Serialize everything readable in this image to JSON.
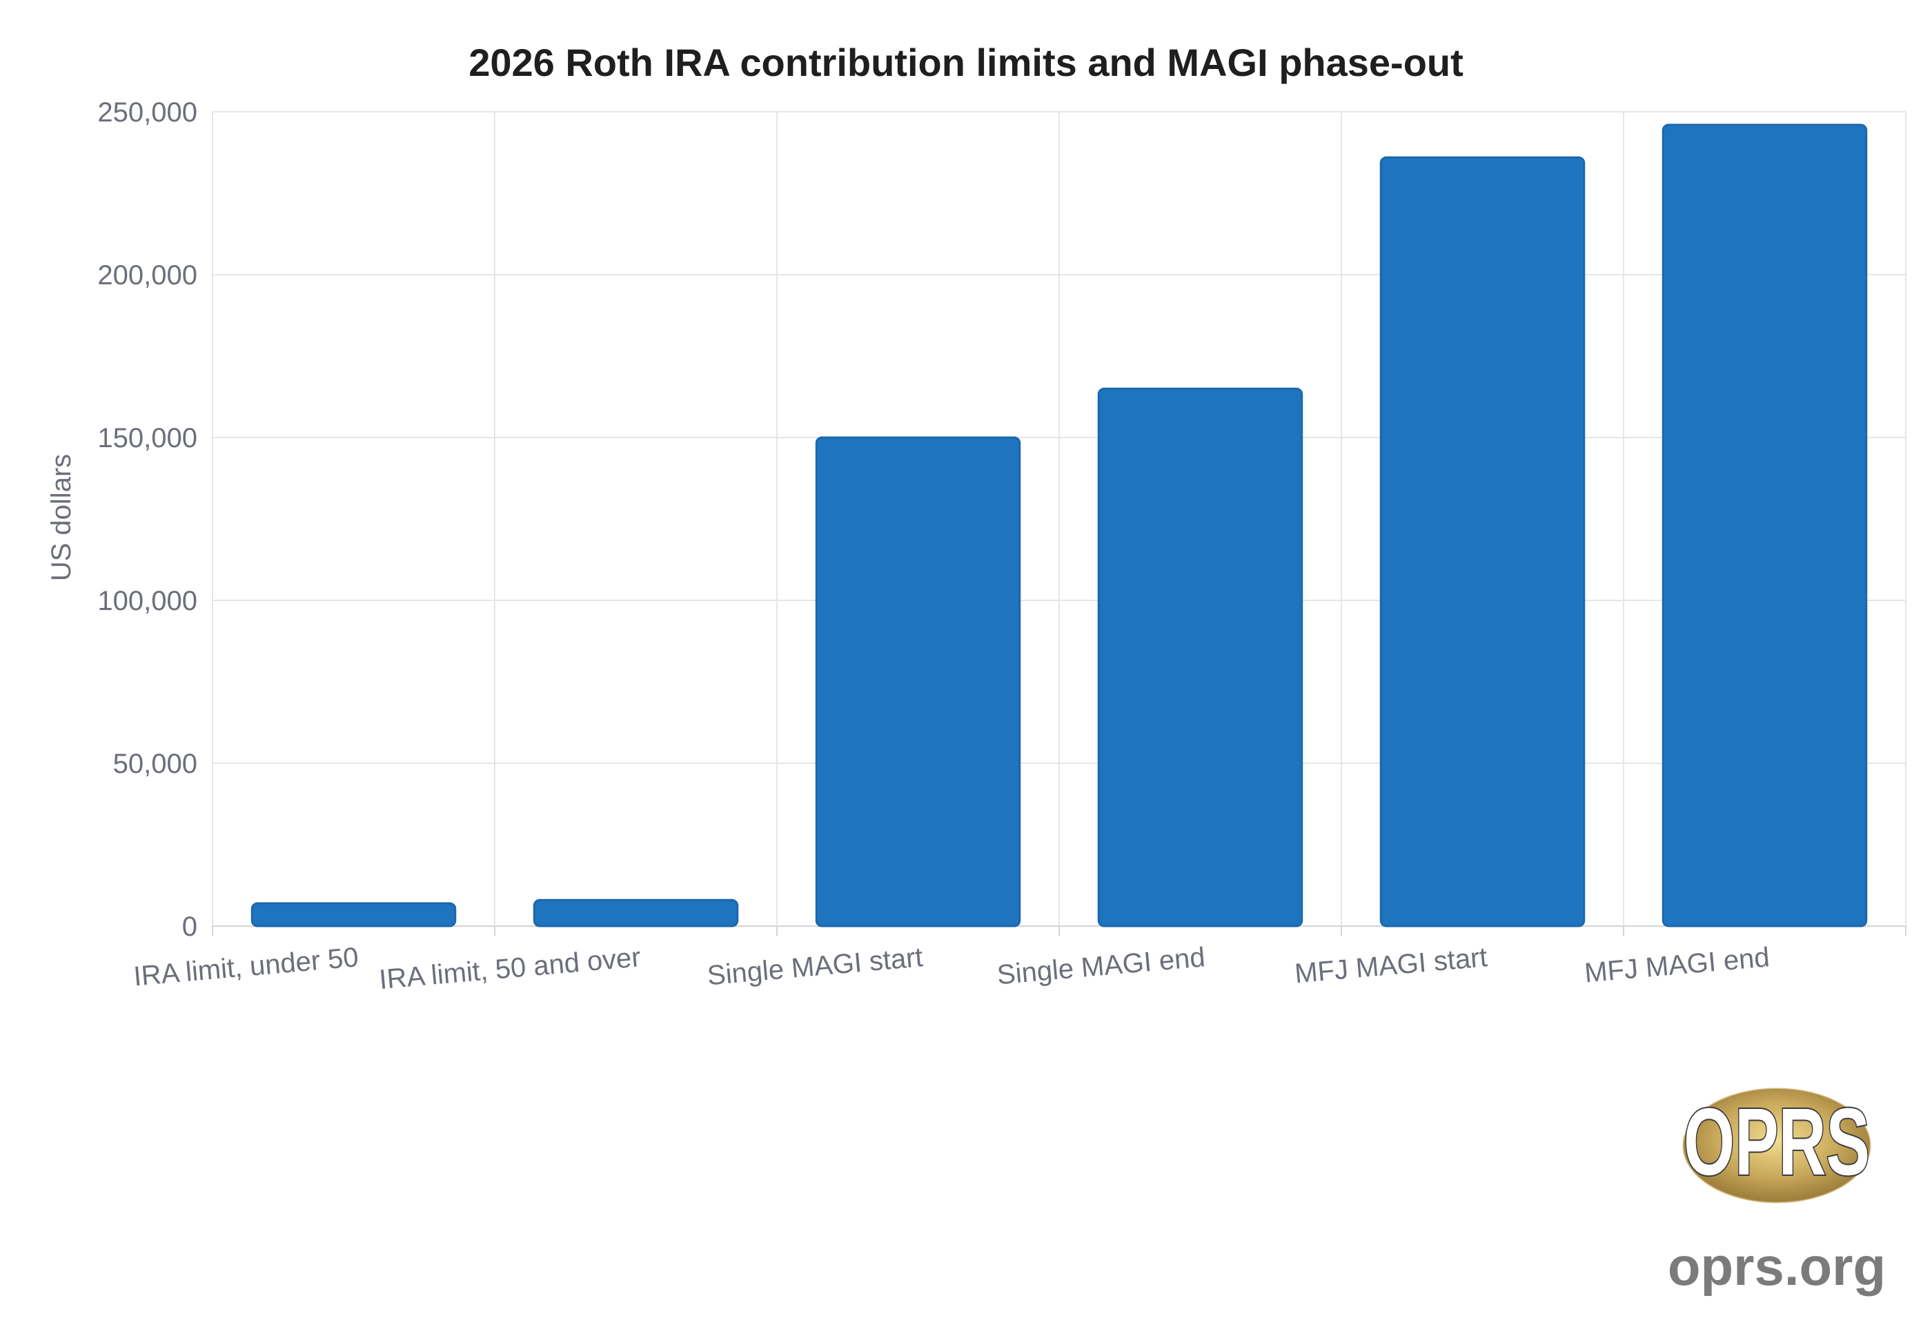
{
  "chart_data": {
    "type": "bar",
    "title": "2026 Roth IRA contribution limits and MAGI phase-out",
    "xlabel": "",
    "ylabel": "US dollars",
    "categories": [
      "IRA limit, under 50",
      "IRA limit, 50 and over",
      "Single MAGI start",
      "Single MAGI end",
      "MFJ MAGI start",
      "MFJ MAGI end"
    ],
    "values": [
      7000,
      8000,
      150000,
      165000,
      236000,
      246000
    ],
    "ylim": [
      0,
      250000
    ],
    "yticks": [
      0,
      50000,
      100000,
      150000,
      200000,
      250000
    ],
    "ytick_labels": [
      "0",
      "50,000",
      "100,000",
      "150,000",
      "200,000",
      "250,000"
    ],
    "grid": true,
    "legend": "none",
    "bar_color": "#1f74bf",
    "bar_edge_color": "#1b68ad"
  },
  "watermark": {
    "logo_text": "OPRS",
    "site_text": "oprs.org"
  }
}
